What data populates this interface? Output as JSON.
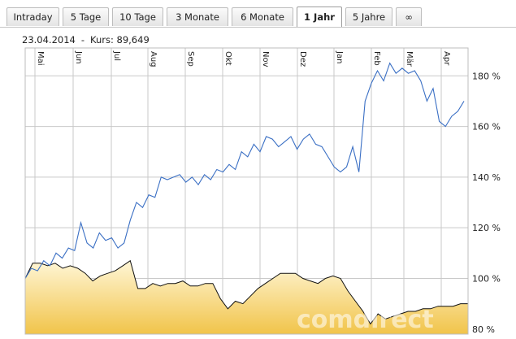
{
  "tabs": [
    {
      "label": "Intraday",
      "active": false
    },
    {
      "label": "5 Tage",
      "active": false
    },
    {
      "label": "10 Tage",
      "active": false
    },
    {
      "label": "3 Monate",
      "active": false
    },
    {
      "label": "6 Monate",
      "active": false
    },
    {
      "label": "1 Jahr",
      "active": true
    },
    {
      "label": "5 Jahre",
      "active": false
    },
    {
      "label": "∞",
      "active": false
    }
  ],
  "info": {
    "date": "23.04.2014",
    "separator": "-",
    "price_text": "Kurs: 89,649"
  },
  "watermark": "comdirect",
  "colors": {
    "price_line": "#3a6fc4",
    "volume_fill_top": "#fff6d6",
    "volume_fill_bottom": "#f1c44a",
    "grid": "#c9c9c9"
  },
  "chart_data": {
    "type": "line",
    "months": [
      "Mai",
      "Jun",
      "Jul",
      "Aug",
      "Sep",
      "Okt",
      "Nov",
      "Dez",
      "Jan",
      "Feb",
      "Mär",
      "Apr"
    ],
    "y_ticks": [
      180,
      160,
      140,
      120,
      100,
      80
    ],
    "y_tick_labels": [
      "180 %",
      "160 %",
      "140 %",
      "120 %",
      "100 %",
      "80 %"
    ],
    "ylim": [
      78,
      191
    ],
    "grid": true,
    "series": [
      {
        "key": "price",
        "style": "line",
        "points": [
          [
            0,
            100
          ],
          [
            1,
            104
          ],
          [
            2,
            103
          ],
          [
            3,
            107
          ],
          [
            4,
            105
          ],
          [
            5,
            110
          ],
          [
            6,
            108
          ],
          [
            7,
            112
          ],
          [
            8,
            111
          ],
          [
            9,
            122
          ],
          [
            10,
            114
          ],
          [
            11,
            112
          ],
          [
            12,
            118
          ],
          [
            13,
            115
          ],
          [
            14,
            116
          ],
          [
            15,
            112
          ],
          [
            16,
            114
          ],
          [
            17,
            123
          ],
          [
            18,
            130
          ],
          [
            19,
            128
          ],
          [
            20,
            133
          ],
          [
            21,
            132
          ],
          [
            22,
            140
          ],
          [
            23,
            139
          ],
          [
            24,
            140
          ],
          [
            25,
            141
          ],
          [
            26,
            138
          ],
          [
            27,
            140
          ],
          [
            28,
            137
          ],
          [
            29,
            141
          ],
          [
            30,
            139
          ],
          [
            31,
            143
          ],
          [
            32,
            142
          ],
          [
            33,
            145
          ],
          [
            34,
            143
          ],
          [
            35,
            150
          ],
          [
            36,
            148
          ],
          [
            37,
            153
          ],
          [
            38,
            150
          ],
          [
            39,
            156
          ],
          [
            40,
            155
          ],
          [
            41,
            152
          ],
          [
            42,
            154
          ],
          [
            43,
            156
          ],
          [
            44,
            151
          ],
          [
            45,
            155
          ],
          [
            46,
            157
          ],
          [
            47,
            153
          ],
          [
            48,
            152
          ],
          [
            49,
            148
          ],
          [
            50,
            144
          ],
          [
            51,
            142
          ],
          [
            52,
            144
          ],
          [
            53,
            152
          ],
          [
            54,
            142
          ],
          [
            55,
            170
          ],
          [
            56,
            177
          ],
          [
            57,
            182
          ],
          [
            58,
            178
          ],
          [
            59,
            185
          ],
          [
            60,
            181
          ],
          [
            61,
            183
          ],
          [
            62,
            181
          ],
          [
            63,
            182
          ],
          [
            64,
            178
          ],
          [
            65,
            170
          ],
          [
            66,
            175
          ],
          [
            67,
            162
          ],
          [
            68,
            160
          ],
          [
            69,
            164
          ],
          [
            70,
            166
          ],
          [
            71,
            170
          ]
        ]
      },
      {
        "key": "volume",
        "style": "area",
        "points": [
          [
            0,
            100
          ],
          [
            1,
            106
          ],
          [
            2,
            106
          ],
          [
            3,
            105
          ],
          [
            4,
            106
          ],
          [
            5,
            104
          ],
          [
            6,
            105
          ],
          [
            7,
            104
          ],
          [
            8,
            102
          ],
          [
            9,
            99
          ],
          [
            10,
            101
          ],
          [
            11,
            102
          ],
          [
            12,
            103
          ],
          [
            13,
            105
          ],
          [
            14,
            107
          ],
          [
            15,
            96
          ],
          [
            16,
            96
          ],
          [
            17,
            98
          ],
          [
            18,
            97
          ],
          [
            19,
            98
          ],
          [
            20,
            98
          ],
          [
            21,
            99
          ],
          [
            22,
            97
          ],
          [
            23,
            97
          ],
          [
            24,
            98
          ],
          [
            25,
            98
          ],
          [
            26,
            92
          ],
          [
            27,
            88
          ],
          [
            28,
            91
          ],
          [
            29,
            90
          ],
          [
            30,
            93
          ],
          [
            31,
            96
          ],
          [
            32,
            98
          ],
          [
            33,
            100
          ],
          [
            34,
            102
          ],
          [
            35,
            102
          ],
          [
            36,
            102
          ],
          [
            37,
            100
          ],
          [
            38,
            99
          ],
          [
            39,
            98
          ],
          [
            40,
            100
          ],
          [
            41,
            101
          ],
          [
            42,
            100
          ],
          [
            43,
            95
          ],
          [
            44,
            91
          ],
          [
            45,
            87
          ],
          [
            46,
            82
          ],
          [
            47,
            86
          ],
          [
            48,
            84
          ],
          [
            49,
            85
          ],
          [
            50,
            86
          ],
          [
            51,
            87
          ],
          [
            52,
            87
          ],
          [
            53,
            88
          ],
          [
            54,
            88
          ],
          [
            55,
            89
          ],
          [
            56,
            89
          ],
          [
            57,
            89
          ],
          [
            58,
            90
          ],
          [
            59,
            90
          ]
        ]
      }
    ]
  }
}
